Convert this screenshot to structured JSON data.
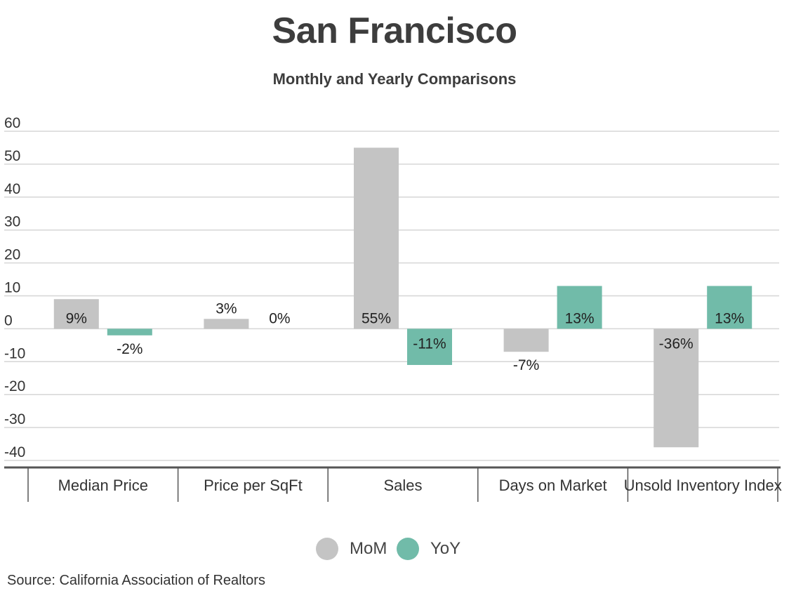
{
  "chart_data": {
    "type": "bar",
    "title": "San Francisco",
    "subtitle": "Monthly and Yearly Comparisons",
    "categories": [
      "Median Price",
      "Price per SqFt",
      "Sales",
      "Days on Market",
      "Unsold Inventory Index"
    ],
    "series": [
      {
        "name": "MoM",
        "color": "#c4c4c4",
        "values": [
          9,
          3,
          55,
          -7,
          -36
        ],
        "labels": [
          "9%",
          "3%",
          "55%",
          "-7%",
          "-36%"
        ]
      },
      {
        "name": "YoY",
        "color": "#71bba9",
        "values": [
          -2,
          0,
          -11,
          13,
          13
        ],
        "labels": [
          "-2%",
          "0%",
          "-11%",
          "13%",
          "13%"
        ]
      }
    ],
    "yticks": [
      "60",
      "50",
      "40",
      "30",
      "20",
      "10",
      "0",
      "-10",
      "-20",
      "-30",
      "-40"
    ],
    "ylim": [
      -40,
      60
    ],
    "grid": true,
    "legend_position": "bottom-center"
  },
  "source": "Source:  California Association of Realtors"
}
